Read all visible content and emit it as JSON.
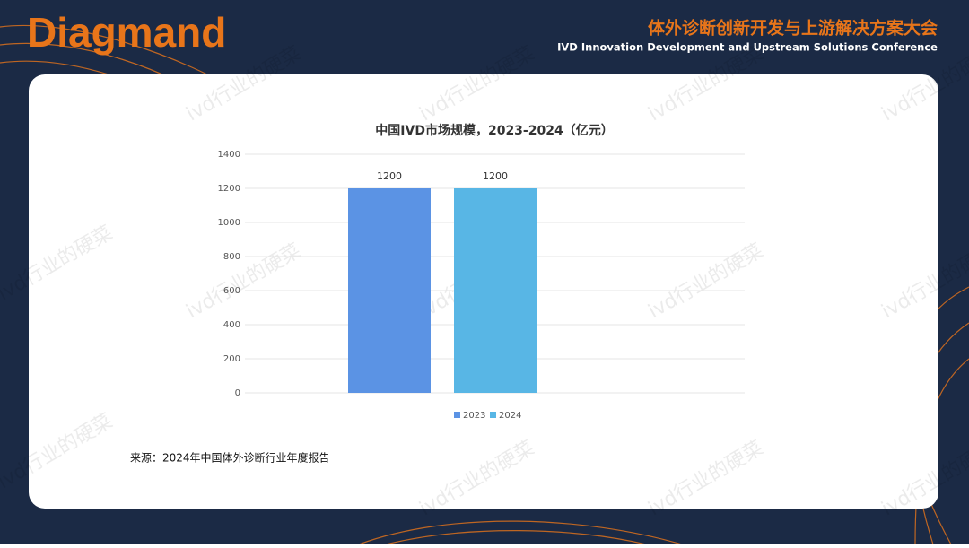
{
  "header": {
    "logo": "Diagmand",
    "title_cn": "体外诊断创新开发与上游解决方案大会",
    "title_en": "IVD Innovation Development and Upstream Solutions Conference"
  },
  "watermark": "ivd行业的硬菜",
  "chart_data": {
    "type": "bar",
    "title": "中国IVD市场规模，2023-2024（亿元）",
    "categories": [
      null
    ],
    "series": [
      {
        "name": "2023",
        "color": "#5b93e4",
        "values": [
          1200
        ]
      },
      {
        "name": "2024",
        "color": "#58b6e5",
        "values": [
          1200
        ]
      }
    ],
    "ylim": [
      0,
      1400
    ],
    "yticks": [
      0,
      200,
      400,
      600,
      800,
      1000,
      1200,
      1400
    ],
    "grid": true,
    "legend": "bottom"
  },
  "source": "来源：2024年中国体外诊断行业年度报告"
}
